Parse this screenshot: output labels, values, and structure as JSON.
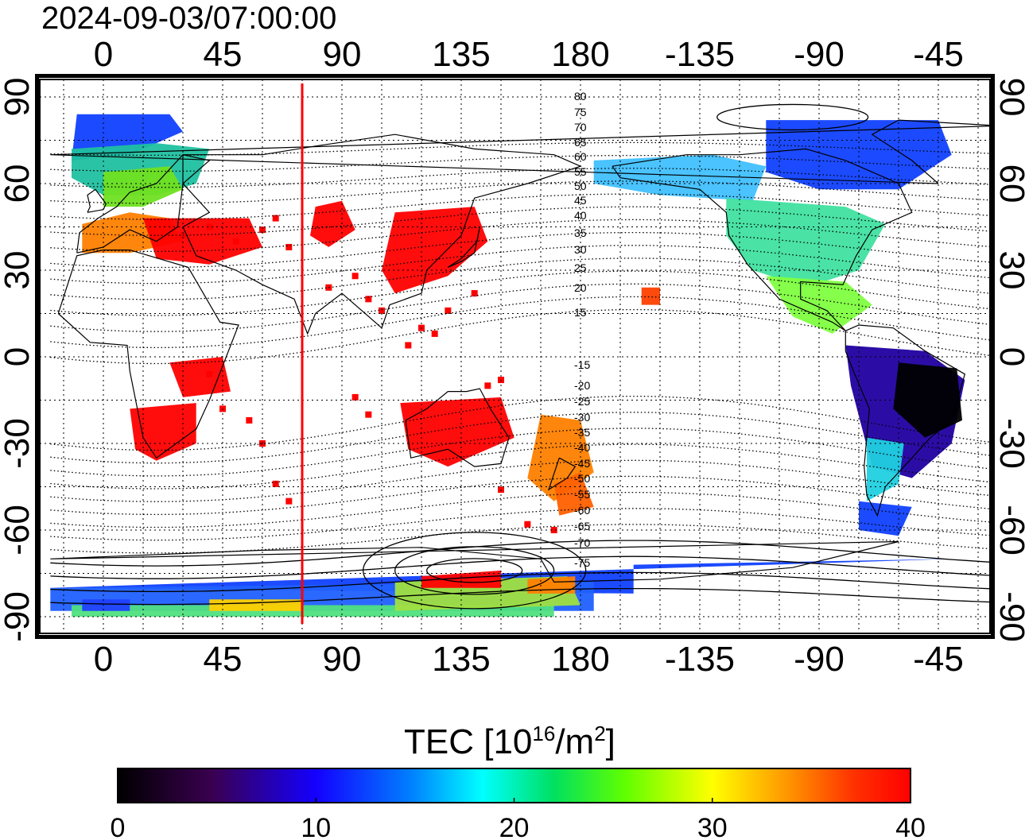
{
  "title": "2024-09-03/07:00:00",
  "map": {
    "lon_ticks": [
      "0",
      "45",
      "90",
      "135",
      "180",
      "-135",
      "-90",
      "-45"
    ],
    "lat_ticks": [
      "90",
      "60",
      "30",
      "0",
      "-30",
      "-60",
      "-90"
    ],
    "contour_labels": [
      "80",
      "75",
      "70",
      "65",
      "60",
      "55",
      "50",
      "45",
      "40",
      "35",
      "30",
      "25",
      "20",
      "15",
      "-15",
      "-20",
      "-25",
      "-30",
      "-35",
      "-40",
      "-45",
      "-50",
      "-55",
      "-60",
      "-65",
      "-70",
      "-75"
    ],
    "marker_longitude": 75,
    "colors": {
      "marker": "#ff0000",
      "coast": "#000000",
      "frame": "#000000"
    }
  },
  "colorbar": {
    "label_main": "TEC  [10",
    "label_sup1": "16",
    "label_mid": "/m",
    "label_sup2": "2",
    "label_end": "]",
    "ticks": [
      "0",
      "10",
      "20",
      "30",
      "40"
    ],
    "min": 0,
    "max": 40
  }
}
